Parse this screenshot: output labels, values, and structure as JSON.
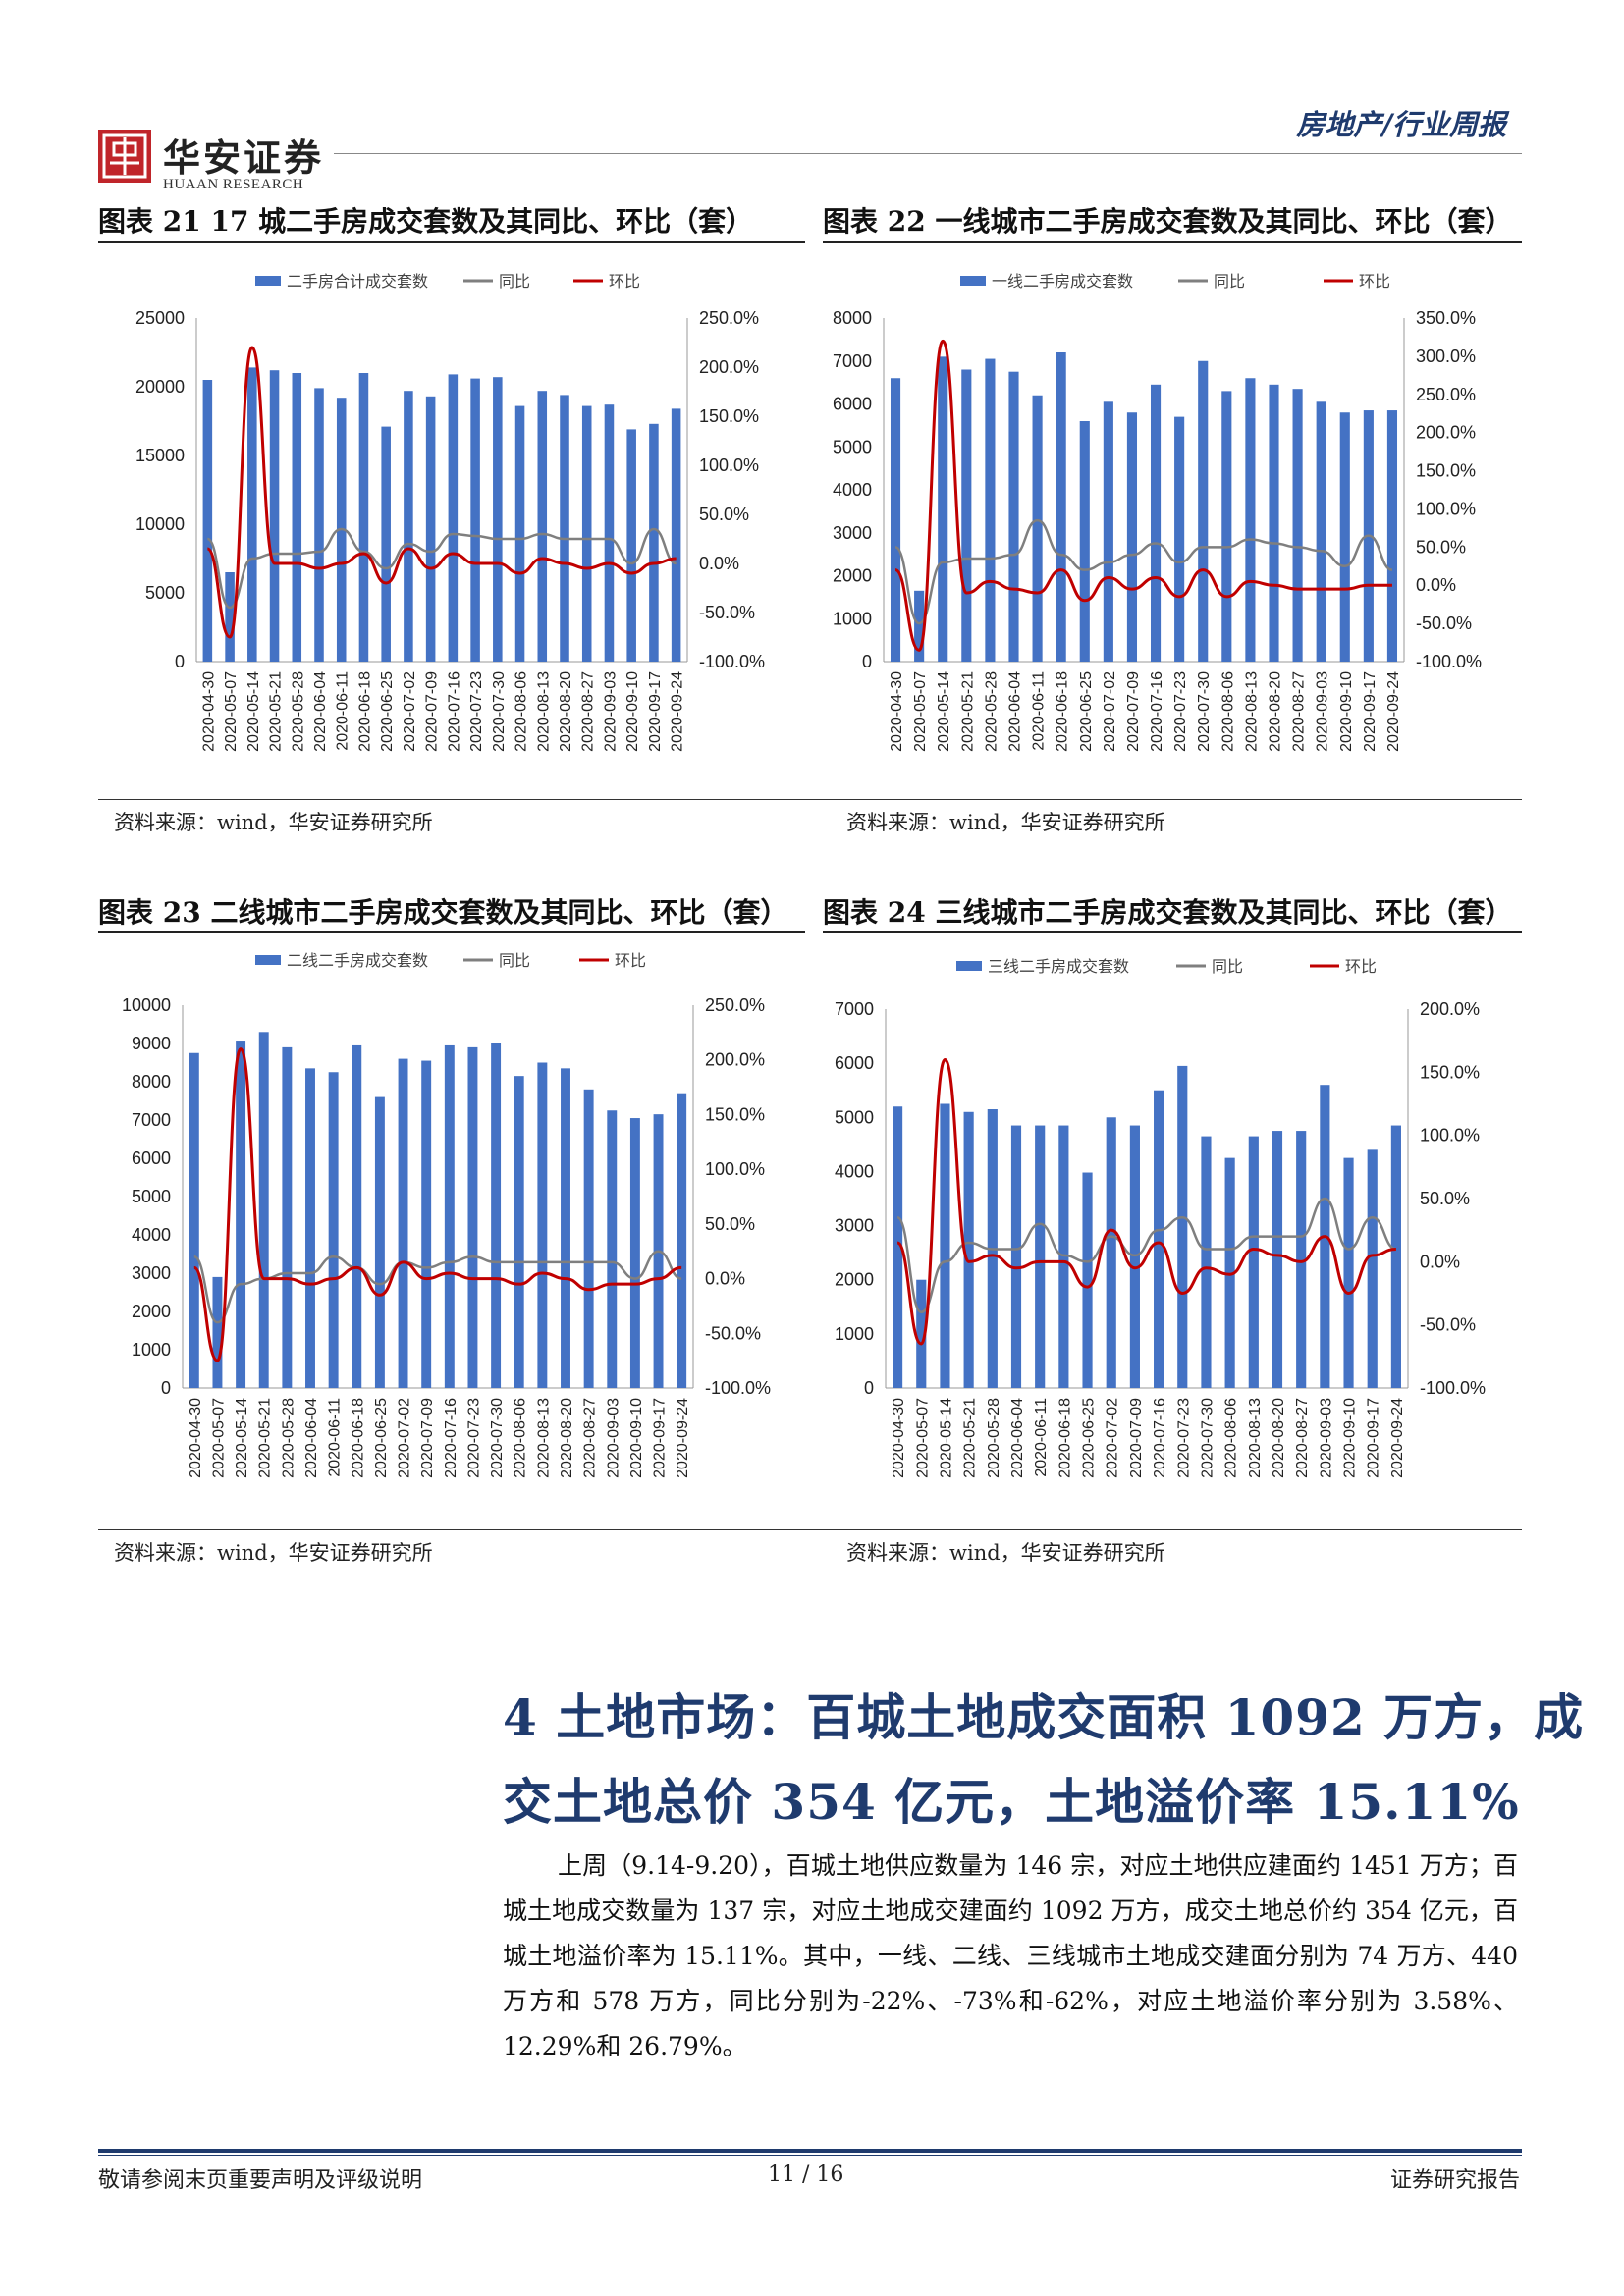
{
  "header": {
    "logo_cn": "华安证券",
    "logo_en": "HUAAN RESEARCH",
    "category": "房地产/行业周报"
  },
  "dates": [
    "2020-04-30",
    "2020-05-07",
    "2020-05-14",
    "2020-05-21",
    "2020-05-28",
    "2020-06-04",
    "2020-06-11",
    "2020-06-18",
    "2020-06-25",
    "2020-07-02",
    "2020-07-09",
    "2020-07-16",
    "2020-07-23",
    "2020-07-30",
    "2020-08-06",
    "2020-08-13",
    "2020-08-20",
    "2020-08-27",
    "2020-09-03",
    "2020-09-10",
    "2020-09-17",
    "2020-09-24"
  ],
  "source_text": "资料来源：wind，华安证券研究所",
  "charts": [
    {
      "figure_title": "图表 21 17 城二手房成交套数及其同比、环比（套）",
      "chart_data": {
        "type": "bar",
        "legend": [
          "二手房合计成交套数",
          "同比",
          "环比"
        ],
        "legend_position": "top",
        "left_axis": {
          "ticks": [
            "0",
            "5000",
            "10000",
            "15000",
            "20000",
            "25000"
          ],
          "min": 0,
          "max": 25000
        },
        "right_axis": {
          "ticks": [
            "-100.0%",
            "-50.0%",
            "0.0%",
            "50.0%",
            "100.0%",
            "150.0%",
            "200.0%",
            "250.0%"
          ],
          "min": -100,
          "max": 250
        },
        "series": [
          {
            "name": "二手房合计成交套数",
            "kind": "bar",
            "color": "#4472c4",
            "values": [
              20500,
              6500,
              21400,
              21200,
              21000,
              19900,
              19200,
              21000,
              17100,
              19700,
              19300,
              20900,
              20600,
              20700,
              18600,
              19700,
              19400,
              18600,
              18700,
              16900,
              17300,
              18400
            ]
          },
          {
            "name": "同比",
            "kind": "line",
            "color": "#7f7f7f",
            "values": [
              25,
              -45,
              5,
              10,
              10,
              12,
              35,
              12,
              -5,
              20,
              12,
              30,
              28,
              25,
              25,
              30,
              25,
              25,
              25,
              0,
              35,
              0
            ]
          },
          {
            "name": "环比",
            "kind": "line",
            "color": "#c00000",
            "values": [
              15,
              -75,
              220,
              0,
              0,
              -5,
              0,
              10,
              -20,
              15,
              -5,
              10,
              0,
              0,
              -10,
              5,
              0,
              -5,
              0,
              -10,
              0,
              5
            ]
          }
        ]
      }
    },
    {
      "figure_title": "图表 22  一线城市二手房成交套数及其同比、环比（套）",
      "chart_data": {
        "type": "bar",
        "legend": [
          "一线二手房成交套数",
          "同比",
          "环比"
        ],
        "legend_position": "top",
        "left_axis": {
          "ticks": [
            "0",
            "1000",
            "2000",
            "3000",
            "4000",
            "5000",
            "6000",
            "7000",
            "8000"
          ],
          "min": 0,
          "max": 8000
        },
        "right_axis": {
          "ticks": [
            "-100.0%",
            "-50.0%",
            "0.0%",
            "50.0%",
            "100.0%",
            "150.0%",
            "200.0%",
            "250.0%",
            "300.0%",
            "350.0%"
          ],
          "min": -100,
          "max": 350
        },
        "series": [
          {
            "name": "一线二手房成交套数",
            "kind": "bar",
            "color": "#4472c4",
            "values": [
              6600,
              1650,
              7100,
              6800,
              7050,
              6750,
              6200,
              7200,
              5600,
              6050,
              5800,
              6450,
              5700,
              7000,
              6300,
              6600,
              6450,
              6350,
              6050,
              5800,
              5850,
              5850
            ]
          },
          {
            "name": "同比",
            "kind": "line",
            "color": "#7f7f7f",
            "values": [
              50,
              -50,
              30,
              35,
              35,
              40,
              85,
              40,
              20,
              30,
              40,
              55,
              30,
              50,
              50,
              60,
              55,
              50,
              45,
              25,
              65,
              20
            ]
          },
          {
            "name": "环比",
            "kind": "line",
            "color": "#c00000",
            "values": [
              20,
              -85,
              320,
              -10,
              5,
              -5,
              -10,
              20,
              -20,
              10,
              -5,
              10,
              -15,
              20,
              -15,
              5,
              0,
              -5,
              -5,
              -5,
              0,
              0
            ]
          }
        ]
      }
    },
    {
      "figure_title": "图表 23  二线城市二手房成交套数及其同比、环比（套）",
      "chart_data": {
        "type": "bar",
        "legend": [
          "二线二手房成交套数",
          "同比",
          "环比"
        ],
        "legend_position": "top",
        "left_axis": {
          "ticks": [
            "0",
            "1000",
            "2000",
            "3000",
            "4000",
            "5000",
            "6000",
            "7000",
            "8000",
            "9000",
            "10000"
          ],
          "min": 0,
          "max": 10000
        },
        "right_axis": {
          "ticks": [
            "-100.0%",
            "-50.0%",
            "0.0%",
            "50.0%",
            "100.0%",
            "150.0%",
            "200.0%",
            "250.0%"
          ],
          "min": -100,
          "max": 250
        },
        "series": [
          {
            "name": "二线二手房成交套数",
            "kind": "bar",
            "color": "#4472c4",
            "values": [
              8750,
              2900,
              9050,
              9300,
              8900,
              8350,
              8250,
              8950,
              7600,
              8600,
              8550,
              8950,
              8900,
              9000,
              8150,
              8500,
              8350,
              7800,
              7250,
              7050,
              7150,
              7700
            ]
          },
          {
            "name": "同比",
            "kind": "line",
            "color": "#7f7f7f",
            "values": [
              20,
              -40,
              -5,
              0,
              5,
              5,
              20,
              10,
              -5,
              15,
              10,
              15,
              20,
              15,
              15,
              15,
              15,
              15,
              15,
              0,
              25,
              0
            ]
          },
          {
            "name": "环比",
            "kind": "line",
            "color": "#c00000",
            "values": [
              10,
              -75,
              210,
              0,
              0,
              -5,
              0,
              10,
              -15,
              15,
              0,
              5,
              0,
              0,
              -5,
              5,
              0,
              -10,
              -5,
              -5,
              0,
              10
            ]
          }
        ]
      }
    },
    {
      "figure_title": "图表 24  三线城市二手房成交套数及其同比、环比（套）",
      "chart_data": {
        "type": "bar",
        "legend": [
          "三线二手房成交套数",
          "同比",
          "环比"
        ],
        "legend_position": "top",
        "left_axis": {
          "ticks": [
            "0",
            "1000",
            "2000",
            "3000",
            "4000",
            "5000",
            "6000",
            "7000"
          ],
          "min": 0,
          "max": 7000
        },
        "right_axis": {
          "ticks": [
            "-100.0%",
            "-50.0%",
            "0.0%",
            "50.0%",
            "100.0%",
            "150.0%",
            "200.0%"
          ],
          "min": -100,
          "max": 200
        },
        "series": [
          {
            "name": "三线二手房成交套数",
            "kind": "bar",
            "color": "#4472c4",
            "values": [
              5200,
              2000,
              5250,
              5100,
              5150,
              4850,
              4850,
              4850,
              3980,
              5000,
              4850,
              5500,
              5950,
              4650,
              4250,
              4650,
              4750,
              4750,
              5600,
              4250,
              4400,
              4850
            ]
          },
          {
            "name": "同比",
            "kind": "line",
            "color": "#7f7f7f",
            "values": [
              35,
              -40,
              0,
              15,
              10,
              10,
              30,
              5,
              0,
              20,
              5,
              25,
              35,
              10,
              10,
              20,
              20,
              20,
              50,
              10,
              35,
              10
            ]
          },
          {
            "name": "环比",
            "kind": "line",
            "color": "#c00000",
            "values": [
              15,
              -65,
              160,
              0,
              5,
              -5,
              0,
              0,
              -20,
              25,
              -5,
              15,
              -25,
              -5,
              -10,
              10,
              5,
              0,
              20,
              -25,
              5,
              10
            ]
          }
        ]
      }
    }
  ],
  "section": {
    "title_line1": "4 土地市场：百城土地成交面积 1092 万方，成",
    "title_line2": "交土地总价 354 亿元，土地溢价率 15.11%",
    "paragraph": "上周（9.14-9.20），百城土地供应数量为 146 宗，对应土地供应建面约 1451 万方；百城土地成交数量为 137 宗，对应土地成交建面约 1092 万方，成交土地总价约 354 亿元，百城土地溢价率为 15.11%。其中，一线、二线、三线城市土地成交建面分别为 74 万方、440 万方和 578 万方，同比分别为-22%、-73%和-62%，对应土地溢价率分别为 3.58%、12.29%和 26.79%。"
  },
  "footer": {
    "left": "敬请参阅末页重要声明及评级说明",
    "page": "11 / 16",
    "right": "证券研究报告"
  }
}
